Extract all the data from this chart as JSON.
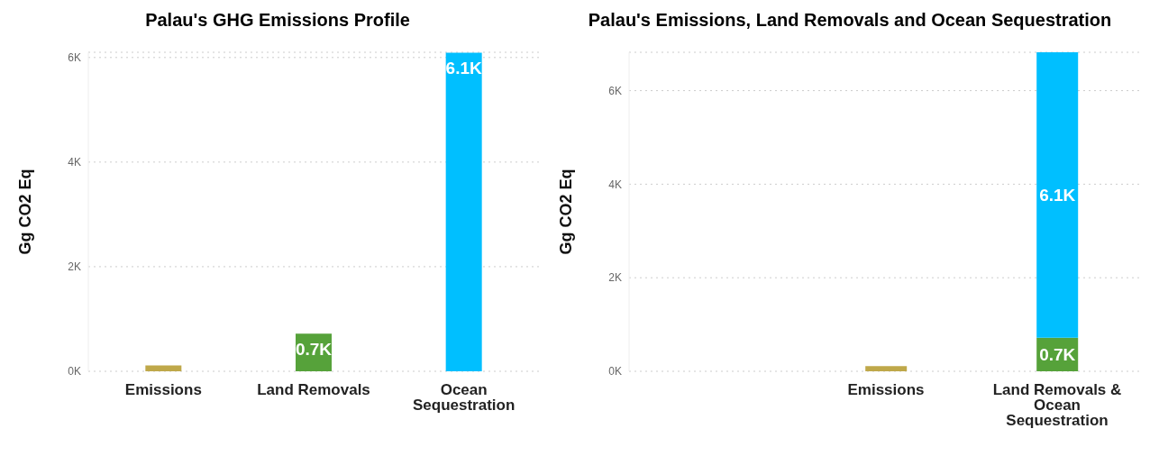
{
  "chart_data": [
    {
      "type": "bar",
      "title": "Palau's GHG Emissions Profile",
      "ylabel": "Gg CO2 Eq",
      "categories": [
        "Emissions",
        "Land Removals",
        "Ocean Sequestration"
      ],
      "values": [
        110,
        720,
        6090
      ],
      "colors": [
        "#bfa84a",
        "#56a23a",
        "#00bfff"
      ],
      "value_labels": [
        null,
        "0.7K",
        "6.1K"
      ],
      "ylim": [
        0,
        6100
      ],
      "yticks": [
        {
          "value": 0,
          "label": "0K"
        },
        {
          "value": 2000,
          "label": "2K"
        },
        {
          "value": 4000,
          "label": "4K"
        },
        {
          "value": 6000,
          "label": "6K"
        }
      ],
      "grid": "y"
    },
    {
      "type": "bar",
      "title": "Palau's Emissions, Land Removals and Ocean Sequestration",
      "ylabel": "Gg CO2 Eq",
      "categories": [
        null,
        "Emissions",
        "Land Removals & Ocean Sequestration"
      ],
      "stacked": true,
      "series": [
        {
          "color": "#bfa84a",
          "values": [
            null,
            110,
            null
          ]
        },
        {
          "color": "#56a23a",
          "values": [
            null,
            null,
            720
          ],
          "value_labels": [
            null,
            null,
            "0.7K"
          ]
        },
        {
          "color": "#00bfff",
          "values": [
            null,
            null,
            6100
          ],
          "value_labels": [
            null,
            null,
            "6.1K"
          ]
        }
      ],
      "ylim": [
        0,
        6820
      ],
      "yticks": [
        {
          "value": 0,
          "label": "0K"
        },
        {
          "value": 2000,
          "label": "2K"
        },
        {
          "value": 4000,
          "label": "4K"
        },
        {
          "value": 6000,
          "label": "6K"
        }
      ],
      "grid": "y"
    }
  ]
}
